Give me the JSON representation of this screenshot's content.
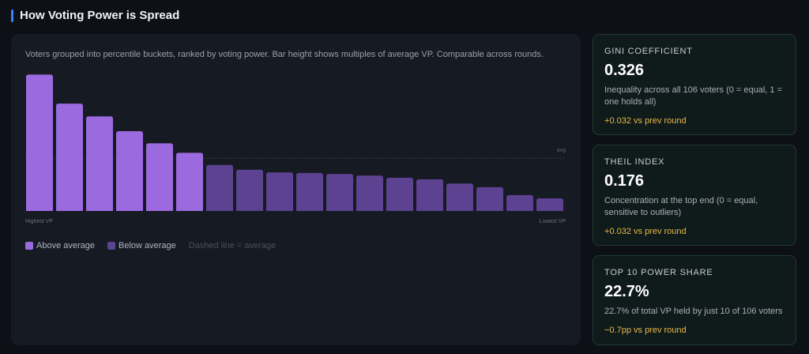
{
  "header": {
    "title": "How Voting Power is Spread"
  },
  "chart_data": {
    "type": "bar",
    "subtitle": "Voters grouped into percentile buckets, ranked by voting power. Bar height shows multiples of average VP. Comparable across rounds.",
    "categories": [
      "Highest VP",
      null,
      null,
      null,
      null,
      null,
      null,
      null,
      null,
      null,
      null,
      null,
      null,
      null,
      null,
      null,
      null,
      "Lowest VP"
    ],
    "values": [
      2.58,
      2.03,
      1.79,
      1.51,
      1.28,
      1.1,
      0.87,
      0.78,
      0.73,
      0.72,
      0.7,
      0.67,
      0.63,
      0.6,
      0.52,
      0.45,
      0.3,
      0.24
    ],
    "ylim": [
      0,
      2.6
    ],
    "reference": {
      "value": 1,
      "label": "avg"
    },
    "legend": [
      {
        "name": "Above average",
        "color": "#9a6ade"
      },
      {
        "name": "Below average",
        "color": "#5c4290"
      }
    ],
    "legend_note": "Dashed line = average"
  },
  "cards": [
    {
      "title": "GINI COEFFICIENT",
      "value": "0.326",
      "description": "Inequality across all 106 voters (0 = equal, 1 = one holds all)",
      "change": "+0.032 vs prev round"
    },
    {
      "title": "THEIL INDEX",
      "value": "0.176",
      "description": "Concentration at the top end (0 = equal, sensitive to outliers)",
      "change": "+0.032 vs prev round"
    },
    {
      "title": "TOP 10 POWER SHARE",
      "value": "22.7%",
      "description": "22.7% of total VP held by just 10 of 106 voters",
      "change": "−0.7pp vs prev round"
    }
  ]
}
